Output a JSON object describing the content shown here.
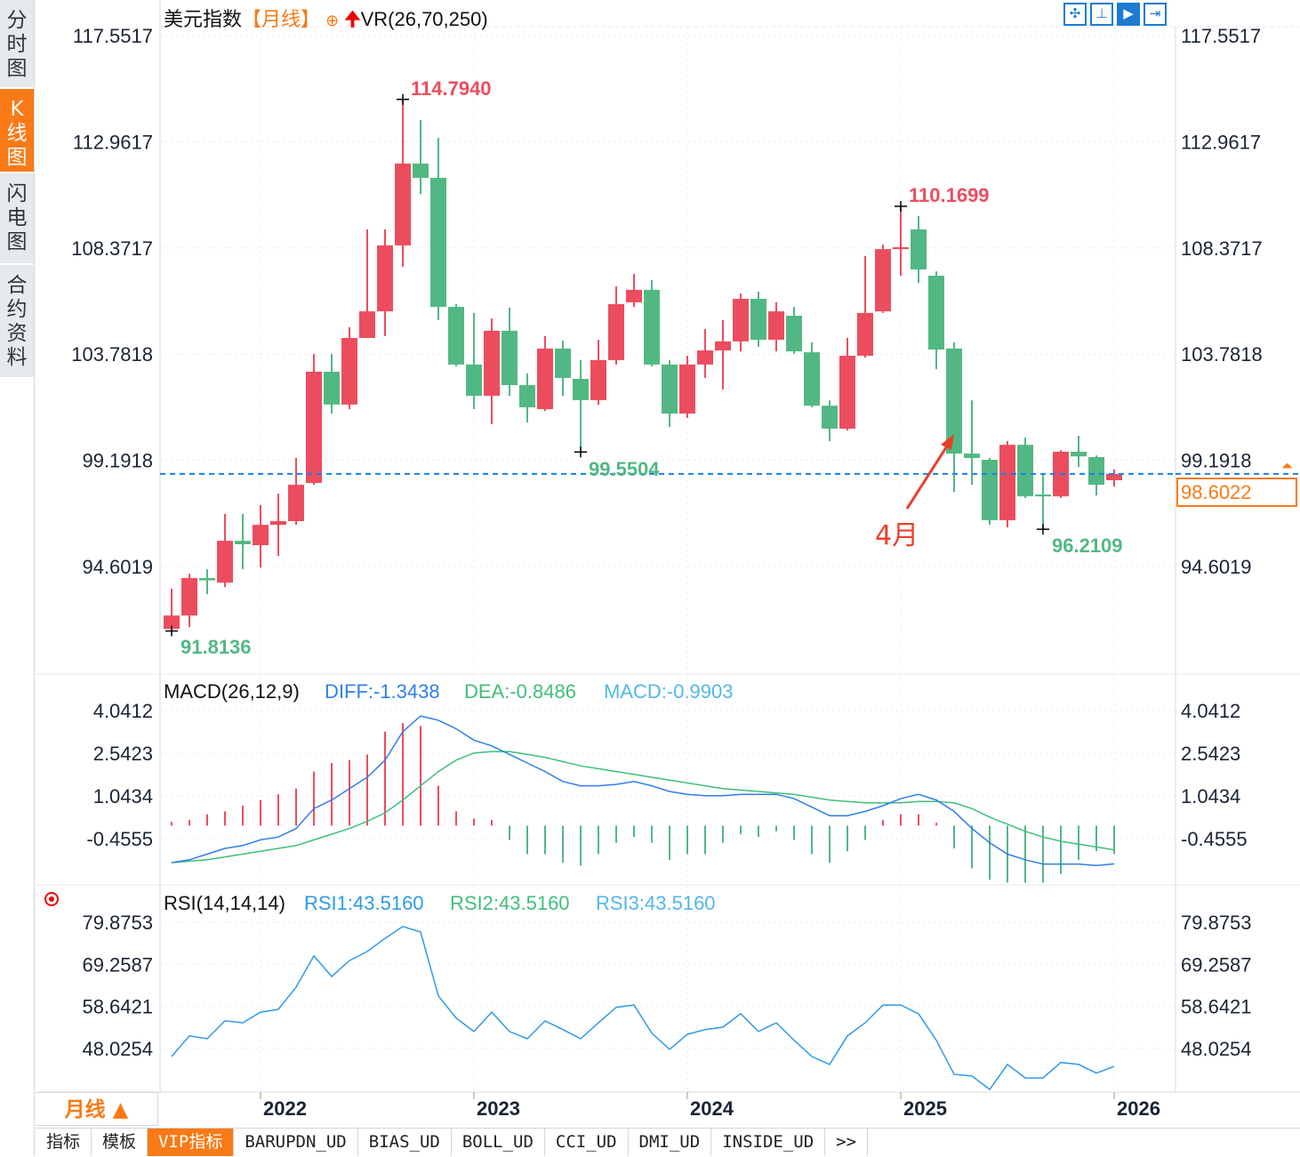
{
  "sidebar": {
    "items": [
      {
        "label": "分时图",
        "active": false
      },
      {
        "label": "K线图",
        "active": true
      },
      {
        "label": "闪电图",
        "active": false
      },
      {
        "label": "合约资料",
        "active": false
      }
    ]
  },
  "header": {
    "title": "美元指数",
    "period": "【月线】",
    "add_icon": "circle-plus-icon",
    "arrow_icon": "red-up-arrow-icon",
    "indicator": "VR(26,70,250)"
  },
  "toolbar": {
    "icons": [
      "crosshair-icon",
      "axis-range-icon",
      "play-axis-icon",
      "shift-right-icon"
    ],
    "active_index": 2
  },
  "current_price": "98.6022",
  "period_selector": "月线 ▲",
  "bottom_tabs": [
    {
      "label": "指标"
    },
    {
      "label": "模板"
    },
    {
      "label": "VIP指标",
      "active": true
    },
    {
      "label": "BARUPDN_UD"
    },
    {
      "label": "BIAS_UD"
    },
    {
      "label": "BOLL_UD"
    },
    {
      "label": "CCI_UD"
    },
    {
      "label": "DMI_UD"
    },
    {
      "label": "INSIDE_UD"
    },
    {
      "label": ">>"
    }
  ],
  "colors": {
    "up": "#ec4d5e",
    "down": "#52b883",
    "diff": "#2f7fe8",
    "dea": "#3fbf7a",
    "macd": "#52b7e8",
    "rsi": "#2e9ae6",
    "accent": "#f97a16",
    "annotation": "#e8402a"
  },
  "chart_data": [
    {
      "type": "candlestick",
      "title": "美元指数",
      "x_ticks": [
        "2022",
        "2023",
        "2024",
        "2025",
        "2026"
      ],
      "y_ticks": [
        "117.5517",
        "112.9617",
        "108.3717",
        "103.7818",
        "99.1918",
        "94.6019"
      ],
      "ylim": [
        88.8,
        117.9
      ],
      "current_price": 98.6022,
      "ohlc": [
        [
          91.9,
          93.64,
          91.81,
          92.48
        ],
        [
          92.48,
          94.29,
          91.98,
          94.1
        ],
        [
          94.1,
          94.48,
          93.4,
          94.0
        ],
        [
          93.9,
          96.87,
          93.71,
          95.71
        ],
        [
          95.71,
          96.87,
          94.48,
          95.56
        ],
        [
          95.52,
          97.25,
          94.56,
          96.4
        ],
        [
          96.4,
          97.75,
          95.06,
          96.56
        ],
        [
          96.56,
          99.29,
          96.4,
          98.13
        ],
        [
          98.21,
          103.79,
          98.13,
          103.02
        ],
        [
          103.02,
          103.79,
          101.21,
          101.6
        ],
        [
          101.6,
          104.94,
          101.4,
          104.48
        ],
        [
          104.48,
          109.17,
          104.48,
          105.63
        ],
        [
          105.63,
          109.17,
          104.56,
          108.48
        ],
        [
          108.48,
          114.794,
          107.55,
          112.02
        ],
        [
          112.02,
          113.9,
          110.7,
          111.4
        ],
        [
          111.4,
          113.13,
          105.25,
          105.82
        ],
        [
          105.82,
          105.94,
          103.25,
          103.33
        ],
        [
          103.33,
          105.56,
          101.4,
          101.98
        ],
        [
          101.98,
          105.32,
          100.75,
          104.79
        ],
        [
          104.79,
          105.79,
          101.98,
          102.44
        ],
        [
          102.44,
          102.94,
          100.83,
          101.48
        ],
        [
          101.4,
          104.56,
          101.32,
          104.02
        ],
        [
          104.02,
          104.36,
          101.98,
          102.75
        ],
        [
          102.71,
          103.52,
          99.5504,
          101.79
        ],
        [
          101.79,
          104.4,
          101.59,
          103.52
        ],
        [
          103.52,
          106.71,
          103.33,
          105.94
        ],
        [
          106.02,
          107.25,
          105.82,
          106.56
        ],
        [
          106.56,
          106.98,
          103.25,
          103.33
        ],
        [
          103.33,
          103.52,
          100.63,
          101.21
        ],
        [
          101.21,
          103.71,
          101.02,
          103.33
        ],
        [
          103.33,
          104.86,
          102.75,
          103.94
        ],
        [
          103.94,
          105.25,
          102.25,
          104.33
        ],
        [
          104.33,
          106.4,
          103.9,
          106.17
        ],
        [
          106.17,
          106.48,
          104.1,
          104.4
        ],
        [
          104.4,
          106.02,
          103.9,
          105.63
        ],
        [
          105.44,
          105.82,
          103.79,
          103.9
        ],
        [
          103.86,
          104.29,
          101.48,
          101.55
        ],
        [
          101.55,
          101.78,
          100.02,
          100.56
        ],
        [
          100.56,
          104.48,
          100.48,
          103.71
        ],
        [
          103.71,
          108.02,
          103.63,
          105.56
        ],
        [
          105.63,
          108.52,
          105.56,
          108.32
        ],
        [
          108.32,
          110.1699,
          107.17,
          108.4
        ],
        [
          109.17,
          109.75,
          106.86,
          107.44
        ],
        [
          107.17,
          107.36,
          103.13,
          103.98
        ],
        [
          104.02,
          104.29,
          97.82,
          99.48
        ],
        [
          99.48,
          101.78,
          98.13,
          99.29
        ],
        [
          99.21,
          99.29,
          96.4,
          96.6
        ],
        [
          96.6,
          100.02,
          96.29,
          99.86
        ],
        [
          99.86,
          100.17,
          97.56,
          97.63
        ],
        [
          97.71,
          98.56,
          96.2109,
          97.63
        ],
        [
          97.63,
          99.63,
          97.56,
          99.56
        ],
        [
          99.56,
          100.25,
          98.9,
          99.36
        ],
        [
          99.33,
          99.4,
          97.67,
          98.13
        ],
        [
          98.33,
          98.79,
          98.06,
          98.6022
        ]
      ],
      "annotations": [
        {
          "text": "114.7940",
          "kind": "high"
        },
        {
          "text": "110.1699",
          "kind": "high"
        },
        {
          "text": "91.8136",
          "kind": "low"
        },
        {
          "text": "99.5504",
          "kind": "low"
        },
        {
          "text": "96.2109",
          "kind": "low"
        },
        {
          "text": "4月",
          "kind": "arrow-note"
        }
      ]
    },
    {
      "type": "macd",
      "label": "MACD(26,12,9)",
      "diff_label": "DIFF:-1.3438",
      "dea_label": "DEA:-0.8486",
      "macd_label": "MACD:-0.9903",
      "y_ticks": [
        "4.0412",
        "2.5423",
        "1.0434",
        "-0.4555"
      ],
      "diff": [
        -1.3,
        -1.2,
        -1.0,
        -0.8,
        -0.7,
        -0.5,
        -0.4,
        -0.1,
        0.6,
        0.9,
        1.3,
        1.7,
        2.3,
        3.3,
        3.85,
        3.7,
        3.4,
        3.0,
        2.8,
        2.5,
        2.2,
        1.9,
        1.55,
        1.4,
        1.4,
        1.45,
        1.55,
        1.4,
        1.2,
        1.1,
        1.05,
        1.05,
        1.1,
        1.1,
        1.1,
        0.95,
        0.65,
        0.35,
        0.35,
        0.5,
        0.7,
        0.95,
        1.1,
        0.9,
        0.5,
        -0.1,
        -0.6,
        -1.0,
        -1.2,
        -1.35,
        -1.35,
        -1.35,
        -1.4,
        -1.3438
      ],
      "dea": [
        -1.3,
        -1.25,
        -1.2,
        -1.1,
        -1.0,
        -0.9,
        -0.8,
        -0.7,
        -0.5,
        -0.3,
        -0.1,
        0.15,
        0.45,
        0.9,
        1.4,
        1.9,
        2.3,
        2.55,
        2.6,
        2.6,
        2.5,
        2.4,
        2.25,
        2.1,
        2.0,
        1.9,
        1.8,
        1.7,
        1.6,
        1.5,
        1.4,
        1.3,
        1.25,
        1.2,
        1.15,
        1.1,
        1.0,
        0.9,
        0.85,
        0.8,
        0.8,
        0.8,
        0.85,
        0.85,
        0.8,
        0.6,
        0.3,
        0.05,
        -0.2,
        -0.4,
        -0.55,
        -0.65,
        -0.75,
        -0.8486
      ],
      "macd": [
        0.13,
        0.2,
        0.4,
        0.5,
        0.7,
        0.9,
        1.1,
        1.3,
        1.9,
        2.2,
        2.3,
        2.5,
        3.3,
        3.6,
        3.5,
        1.4,
        0.5,
        0.25,
        0.2,
        -0.5,
        -1.0,
        -1.0,
        -1.3,
        -1.4,
        -1.0,
        -0.6,
        -0.4,
        -0.6,
        -1.2,
        -1.0,
        -1.0,
        -0.6,
        -0.3,
        -0.4,
        -0.2,
        -0.5,
        -1.0,
        -1.3,
        -0.9,
        -0.5,
        0.2,
        0.4,
        0.4,
        0.1,
        -0.8,
        -1.5,
        -1.9,
        -2.0,
        -2.0,
        -2.0,
        -1.7,
        -1.2,
        -0.9,
        -0.9903
      ]
    },
    {
      "type": "line",
      "label": "RSI(14,14,14)",
      "rsi1_label": "RSI1:43.5160",
      "rsi2_label": "RSI2:43.5160",
      "rsi3_label": "RSI3:43.5160",
      "y_ticks": [
        "79.8753",
        "69.2587",
        "58.6421",
        "48.0254"
      ],
      "rsi": [
        46.0,
        51.2,
        50.5,
        55.0,
        54.5,
        57.2,
        57.9,
        63.5,
        71.4,
        66.2,
        70.2,
        72.5,
        75.8,
        78.8,
        77.4,
        61.3,
        55.7,
        52.3,
        57.2,
        52.3,
        50.5,
        55.0,
        52.8,
        50.5,
        54.5,
        58.4,
        59.0,
        51.9,
        47.8,
        51.6,
        52.8,
        53.4,
        56.8,
        52.3,
        54.5,
        50.1,
        46.0,
        44.0,
        51.2,
        54.5,
        59.0,
        59.0,
        56.8,
        50.1,
        41.5,
        41.1,
        37.7,
        44.0,
        40.6,
        40.6,
        44.5,
        44.0,
        41.8,
        43.516
      ]
    }
  ]
}
